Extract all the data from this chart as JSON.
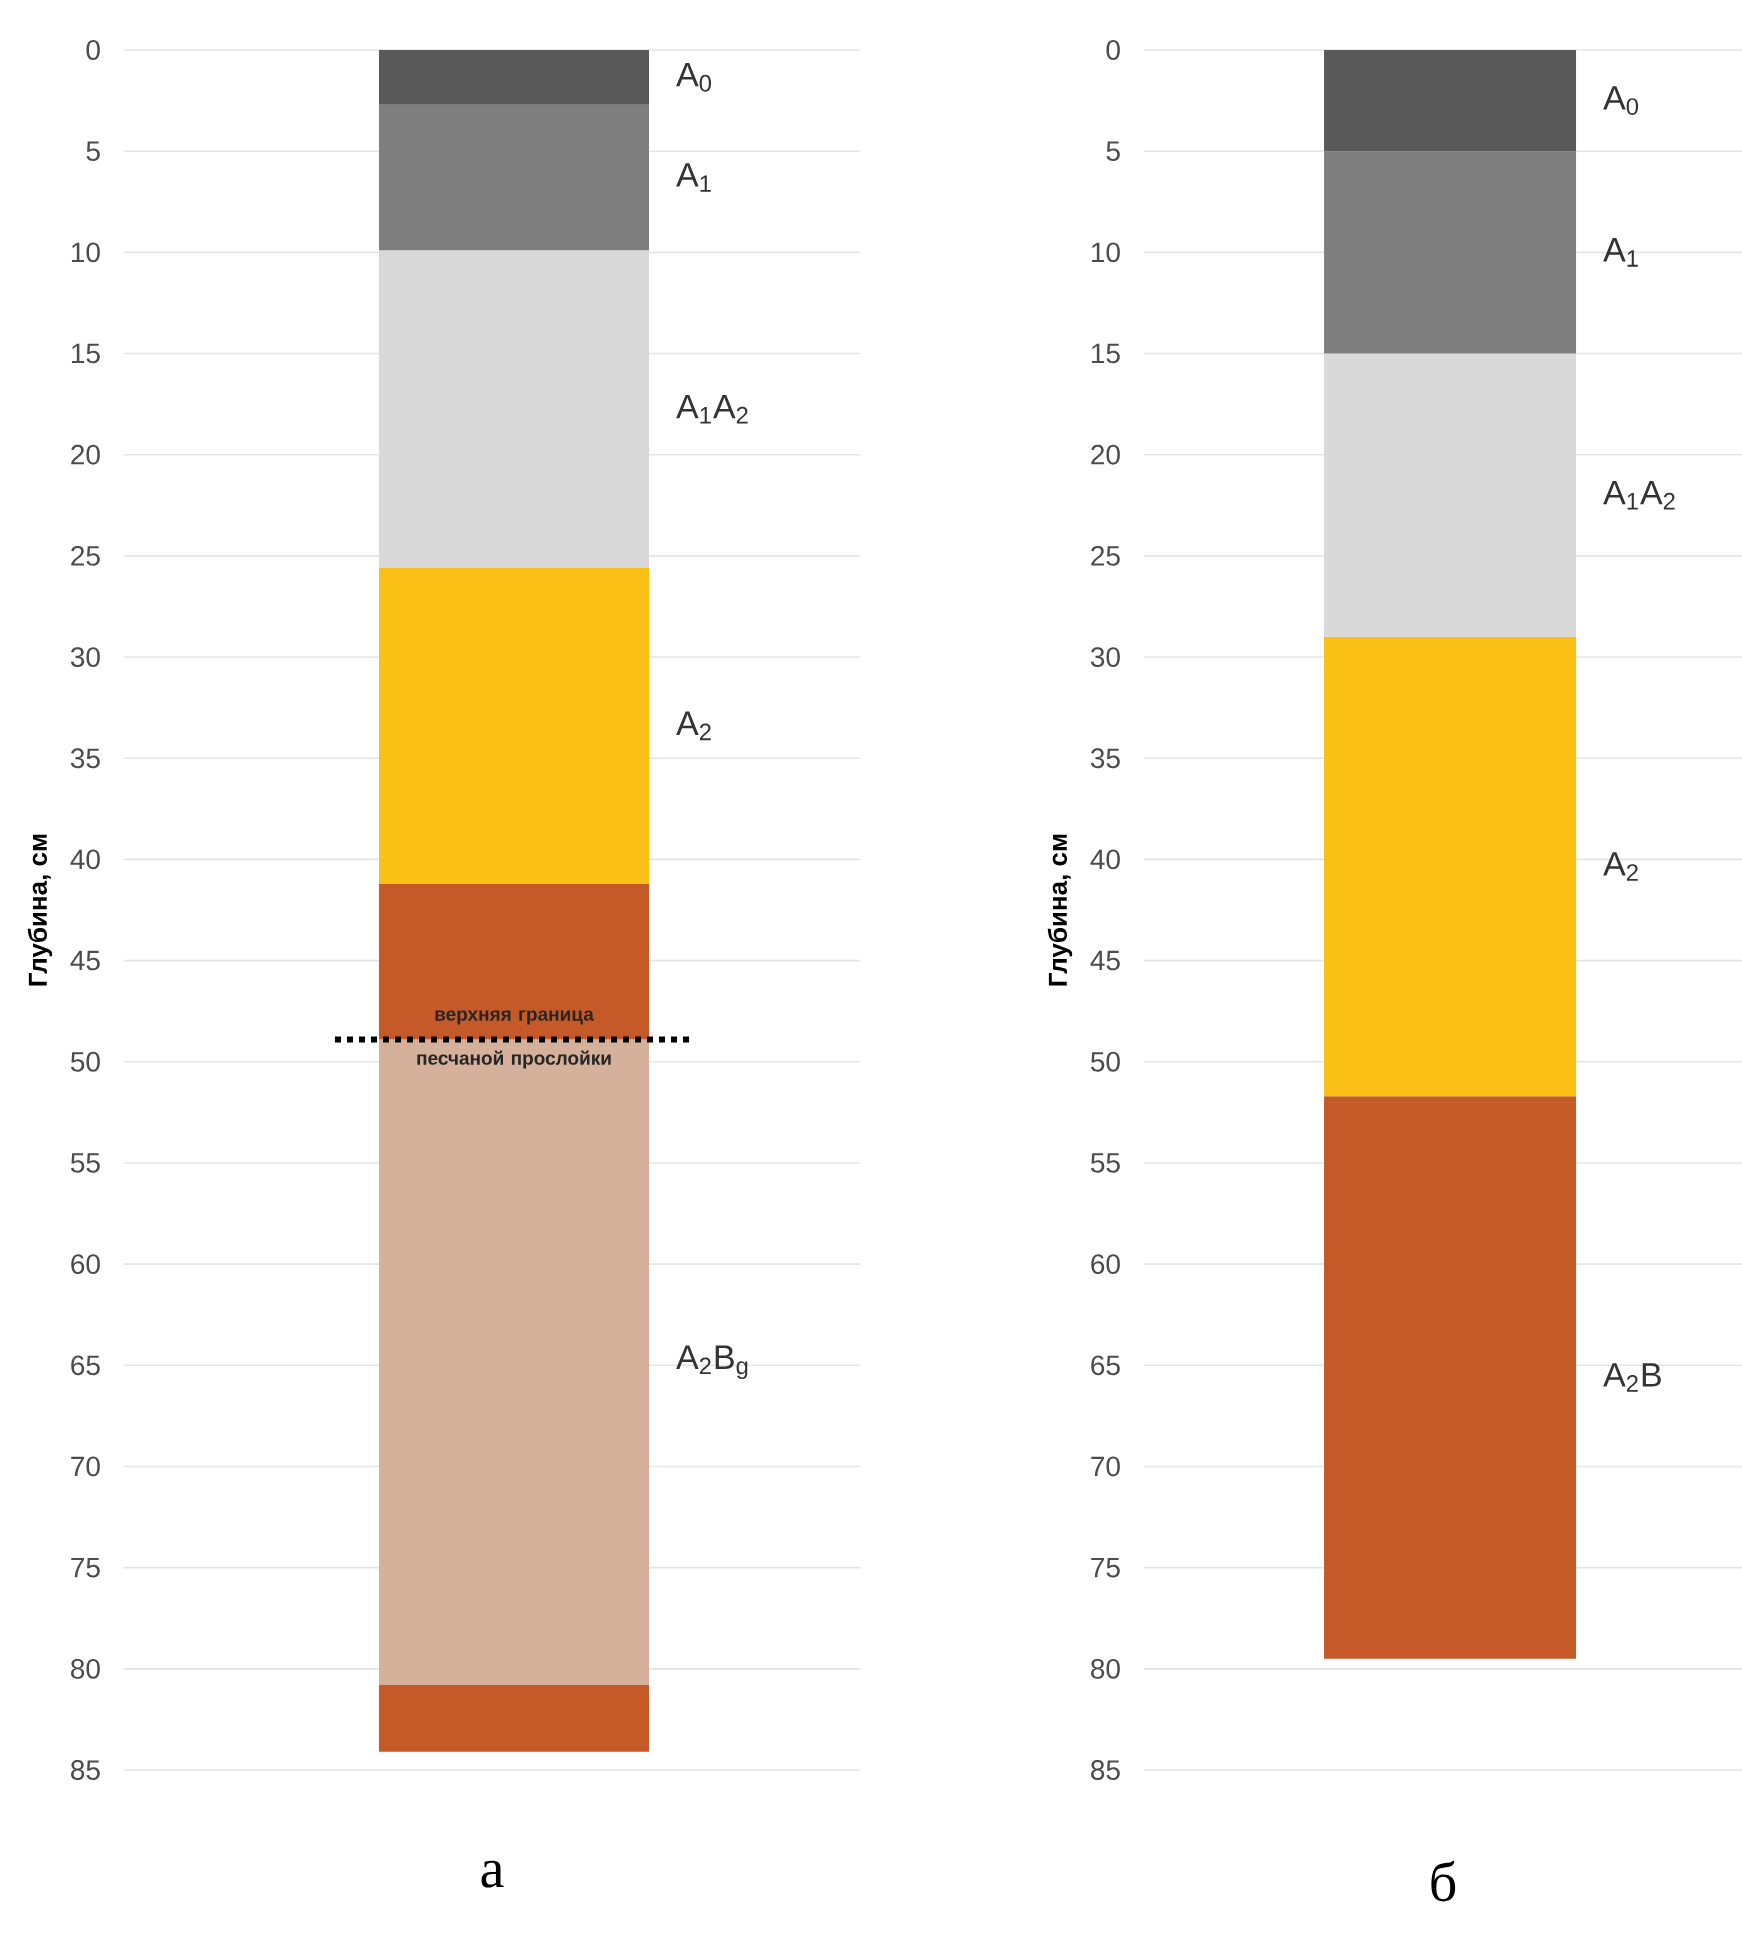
{
  "chart_data": [
    {
      "type": "bar",
      "stacked": true,
      "xlabel": "а",
      "ylabel": "Глубина, см",
      "categories": [
        null
      ],
      "ylim": [
        85,
        0
      ],
      "yticks": [
        0,
        5,
        10,
        15,
        20,
        25,
        30,
        35,
        40,
        45,
        50,
        55,
        60,
        65,
        70,
        75,
        80,
        85
      ],
      "grid": "y",
      "series": [
        {
          "name": "A$_{0}$",
          "color": "#595959",
          "values": [
            2.7
          ]
        },
        {
          "name": "A$_{1}$",
          "color": "#7f7f7f",
          "values": [
            7.2
          ]
        },
        {
          "name": "A$_{1}$A$_{2}$",
          "color": "#d9d9d9",
          "values": [
            15.7
          ]
        },
        {
          "name": "A$_{2}$",
          "color": "#fbc015",
          "values": [
            15.6
          ]
        },
        {
          "color": "#c55a28",
          "values": [
            7.7
          ]
        },
        {
          "name": "A$_{2}$B$_{g}$",
          "color": "#d5b09a",
          "values": [
            31.9
          ]
        },
        {
          "color": "#c55a28",
          "values": [
            3.3
          ]
        }
      ],
      "ref_lines": [
        {
          "axis": "y",
          "value": 48.9,
          "label": "верхняя граница песчаной прослойки",
          "color": "#000000",
          "line_style": "dotted"
        }
      ]
    },
    {
      "type": "bar",
      "stacked": true,
      "xlabel": "б",
      "ylabel": "Глубина, см",
      "categories": [
        null
      ],
      "ylim": [
        85,
        0
      ],
      "yticks": [
        0,
        5,
        10,
        15,
        20,
        25,
        30,
        35,
        40,
        45,
        50,
        55,
        60,
        65,
        70,
        75,
        80,
        85
      ],
      "grid": "y",
      "series": [
        {
          "name": "A$_{0}$",
          "color": "#595959",
          "values": [
            5
          ]
        },
        {
          "name": "A$_{1}$",
          "color": "#7f7f7f",
          "values": [
            10
          ]
        },
        {
          "name": "A$_{1}$A$_{2}$",
          "color": "#d9d9d9",
          "values": [
            14
          ]
        },
        {
          "name": "A$_{2}$",
          "color": "#fbc015",
          "values": [
            22.7
          ]
        },
        {
          "name": "A$_{2}$B",
          "color": "#c55a28",
          "values": [
            27.8
          ]
        }
      ]
    }
  ]
}
